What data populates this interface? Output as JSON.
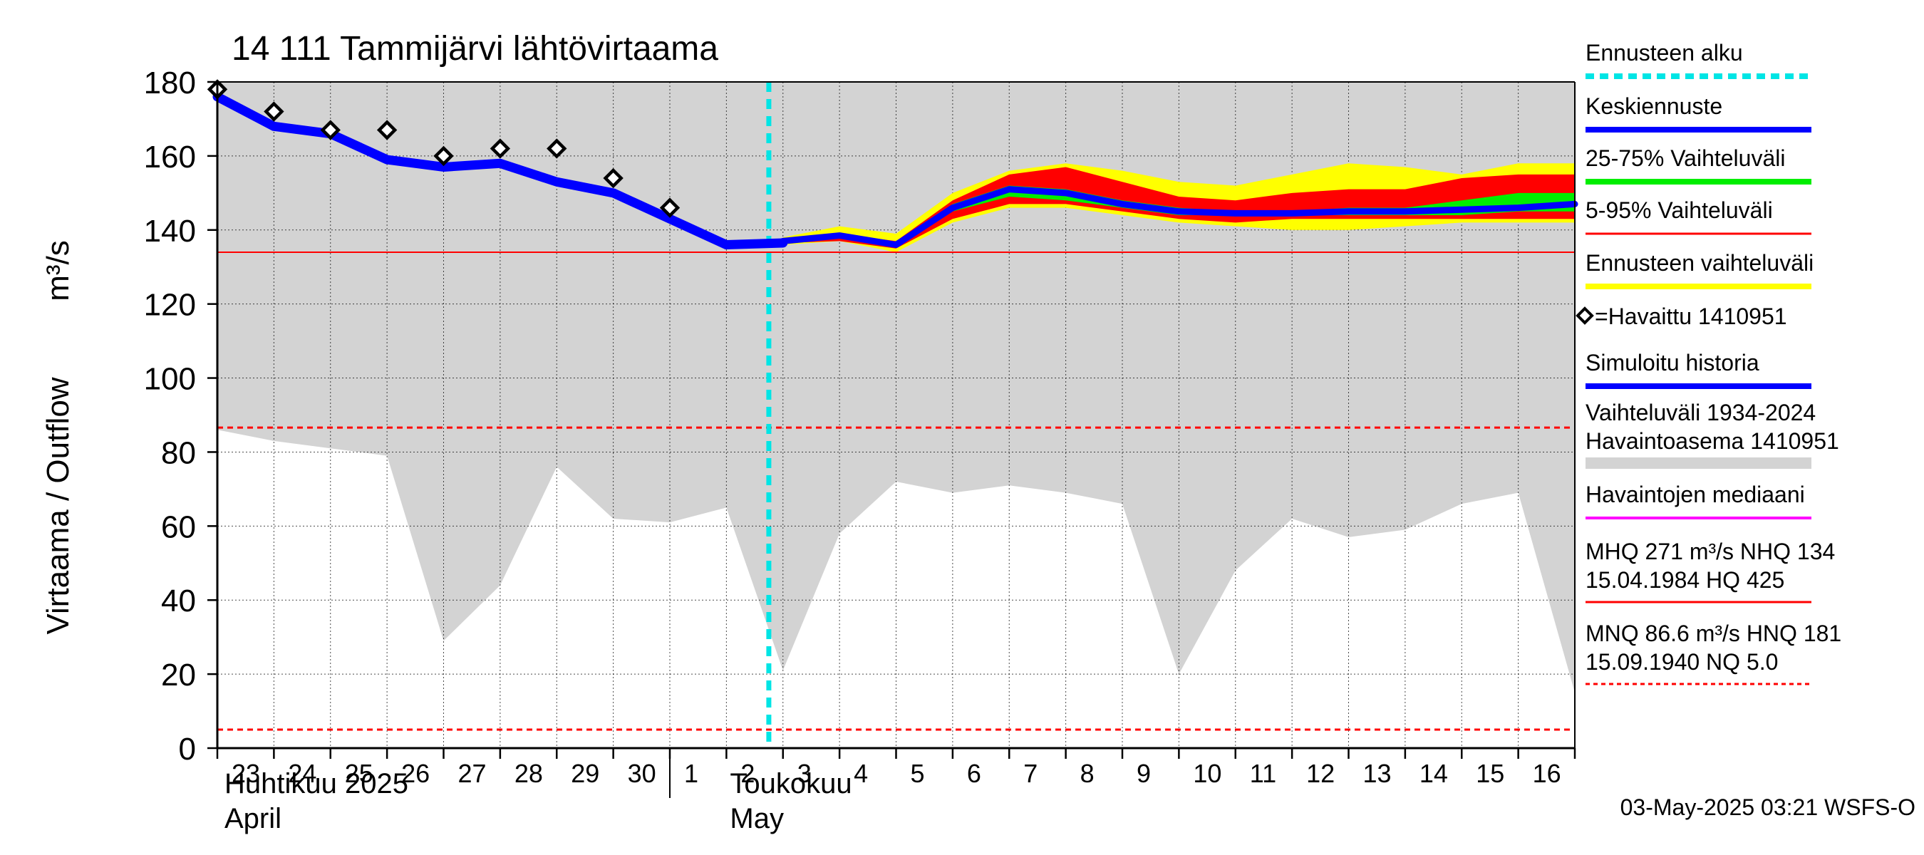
{
  "chart_data": {
    "type": "line",
    "title": "14 111 Tammijärvi lähtövirtaama",
    "ylabel": "Virtaama / Outflow",
    "yunit": "m³/s",
    "ylim": [
      0,
      180
    ],
    "yticks": [
      0,
      20,
      40,
      60,
      80,
      100,
      120,
      140,
      160,
      180
    ],
    "xlim": [
      "2025-04-23",
      "2025-05-17"
    ],
    "x_tick_labels": [
      "23",
      "24",
      "25",
      "26",
      "27",
      "28",
      "29",
      "30",
      "1",
      "2",
      "3",
      "4",
      "5",
      "6",
      "7",
      "8",
      "9",
      "10",
      "11",
      "12",
      "13",
      "14",
      "15",
      "16"
    ],
    "month_labels": [
      {
        "fi": "Huhtikuu  2025",
        "en": "April"
      },
      {
        "fi": "Toukokuu",
        "en": "May"
      }
    ],
    "grid": true,
    "forecast_start": "2025-05-03",
    "colors": {
      "history_range": "#d3d3d3",
      "forecast_range": "#ffff00",
      "p5_95": "#ff0000",
      "p25_75": "#00ee00",
      "mean": "#0000ff",
      "forecast_start": "#00e5e5",
      "reference_line": "#ff0000"
    },
    "reference_lines": {
      "NHQ": 134,
      "MNQ": 86.6,
      "NQ": 5.0
    },
    "history_range": {
      "upper": 180,
      "lower": [
        {
          "x": "2025-04-23",
          "y": 86
        },
        {
          "x": "2025-04-24",
          "y": 83
        },
        {
          "x": "2025-04-25",
          "y": 81
        },
        {
          "x": "2025-04-26",
          "y": 79
        },
        {
          "x": "2025-04-27",
          "y": 29
        },
        {
          "x": "2025-04-28",
          "y": 44
        },
        {
          "x": "2025-04-29",
          "y": 76
        },
        {
          "x": "2025-04-30",
          "y": 62
        },
        {
          "x": "2025-05-01",
          "y": 61
        },
        {
          "x": "2025-05-02",
          "y": 65
        },
        {
          "x": "2025-05-03",
          "y": 21
        },
        {
          "x": "2025-05-04",
          "y": 58
        },
        {
          "x": "2025-05-05",
          "y": 72
        },
        {
          "x": "2025-05-06",
          "y": 69
        },
        {
          "x": "2025-05-07",
          "y": 71
        },
        {
          "x": "2025-05-08",
          "y": 69
        },
        {
          "x": "2025-05-09",
          "y": 66
        },
        {
          "x": "2025-05-10",
          "y": 20
        },
        {
          "x": "2025-05-11",
          "y": 48
        },
        {
          "x": "2025-05-12",
          "y": 62
        },
        {
          "x": "2025-05-13",
          "y": 57
        },
        {
          "x": "2025-05-14",
          "y": 59
        },
        {
          "x": "2025-05-15",
          "y": 66
        },
        {
          "x": "2025-05-16",
          "y": 69
        },
        {
          "x": "2025-05-17",
          "y": 15
        }
      ]
    },
    "forecast_range": [
      {
        "x": "2025-05-03",
        "low": 136,
        "high": 138
      },
      {
        "x": "2025-05-04",
        "low": 137,
        "high": 141
      },
      {
        "x": "2025-05-05",
        "low": 134,
        "high": 139
      },
      {
        "x": "2025-05-06",
        "low": 142,
        "high": 150
      },
      {
        "x": "2025-05-07",
        "low": 146,
        "high": 156
      },
      {
        "x": "2025-05-08",
        "low": 146,
        "high": 158
      },
      {
        "x": "2025-05-09",
        "low": 144,
        "high": 156
      },
      {
        "x": "2025-05-10",
        "low": 142,
        "high": 153
      },
      {
        "x": "2025-05-11",
        "low": 141,
        "high": 152
      },
      {
        "x": "2025-05-12",
        "low": 140,
        "high": 155
      },
      {
        "x": "2025-05-13",
        "low": 140,
        "high": 158
      },
      {
        "x": "2025-05-14",
        "low": 141,
        "high": 157
      },
      {
        "x": "2025-05-15",
        "low": 142,
        "high": 155
      },
      {
        "x": "2025-05-16",
        "low": 142,
        "high": 158
      },
      {
        "x": "2025-05-17",
        "low": 142,
        "high": 158
      }
    ],
    "p5_95": [
      {
        "x": "2025-05-03",
        "low": 136.5,
        "high": 137.5
      },
      {
        "x": "2025-05-04",
        "low": 137,
        "high": 139
      },
      {
        "x": "2025-05-05",
        "low": 135,
        "high": 137
      },
      {
        "x": "2025-05-06",
        "low": 143,
        "high": 148
      },
      {
        "x": "2025-05-07",
        "low": 147,
        "high": 155
      },
      {
        "x": "2025-05-08",
        "low": 147,
        "high": 157
      },
      {
        "x": "2025-05-09",
        "low": 145,
        "high": 153
      },
      {
        "x": "2025-05-10",
        "low": 143,
        "high": 149
      },
      {
        "x": "2025-05-11",
        "low": 142,
        "high": 148
      },
      {
        "x": "2025-05-12",
        "low": 143,
        "high": 150
      },
      {
        "x": "2025-05-13",
        "low": 143,
        "high": 151
      },
      {
        "x": "2025-05-14",
        "low": 143,
        "high": 151
      },
      {
        "x": "2025-05-15",
        "low": 143,
        "high": 154
      },
      {
        "x": "2025-05-16",
        "low": 143,
        "high": 155
      },
      {
        "x": "2025-05-17",
        "low": 143,
        "high": 155
      }
    ],
    "p25_75": [
      {
        "x": "2025-05-03",
        "low": 136.8,
        "high": 137.2
      },
      {
        "x": "2025-05-04",
        "low": 138,
        "high": 138.6
      },
      {
        "x": "2025-05-05",
        "low": 135.6,
        "high": 136.4
      },
      {
        "x": "2025-05-06",
        "low": 145,
        "high": 147
      },
      {
        "x": "2025-05-07",
        "low": 149,
        "high": 152
      },
      {
        "x": "2025-05-08",
        "low": 148,
        "high": 151
      },
      {
        "x": "2025-05-09",
        "low": 146,
        "high": 148
      },
      {
        "x": "2025-05-10",
        "low": 144,
        "high": 146
      },
      {
        "x": "2025-05-11",
        "low": 144,
        "high": 145
      },
      {
        "x": "2025-05-12",
        "low": 144,
        "high": 145
      },
      {
        "x": "2025-05-13",
        "low": 144,
        "high": 146
      },
      {
        "x": "2025-05-14",
        "low": 144,
        "high": 146
      },
      {
        "x": "2025-05-15",
        "low": 144,
        "high": 148
      },
      {
        "x": "2025-05-16",
        "low": 145,
        "high": 150
      },
      {
        "x": "2025-05-17",
        "low": 145,
        "high": 150
      }
    ],
    "series": [
      {
        "name": "Simuloitu historia",
        "values": [
          {
            "x": "2025-04-23",
            "y": 176
          },
          {
            "x": "2025-04-24",
            "y": 168
          },
          {
            "x": "2025-04-25",
            "y": 166
          },
          {
            "x": "2025-04-26",
            "y": 159
          },
          {
            "x": "2025-04-27",
            "y": 157
          },
          {
            "x": "2025-04-28",
            "y": 158
          },
          {
            "x": "2025-04-29",
            "y": 153
          },
          {
            "x": "2025-04-30",
            "y": 150
          },
          {
            "x": "2025-05-01",
            "y": 143
          },
          {
            "x": "2025-05-02",
            "y": 136
          },
          {
            "x": "2025-05-03",
            "y": 136.5
          }
        ]
      },
      {
        "name": "Keskiennuste",
        "values": [
          {
            "x": "2025-05-03",
            "y": 137
          },
          {
            "x": "2025-05-04",
            "y": 138.5
          },
          {
            "x": "2025-05-05",
            "y": 136
          },
          {
            "x": "2025-05-06",
            "y": 146
          },
          {
            "x": "2025-05-07",
            "y": 151
          },
          {
            "x": "2025-05-08",
            "y": 150
          },
          {
            "x": "2025-05-09",
            "y": 147
          },
          {
            "x": "2025-05-10",
            "y": 145
          },
          {
            "x": "2025-05-11",
            "y": 144.5
          },
          {
            "x": "2025-05-12",
            "y": 144.5
          },
          {
            "x": "2025-05-13",
            "y": 145
          },
          {
            "x": "2025-05-14",
            "y": 145
          },
          {
            "x": "2025-05-15",
            "y": 145.5
          },
          {
            "x": "2025-05-16",
            "y": 146
          },
          {
            "x": "2025-05-17",
            "y": 147
          }
        ]
      }
    ],
    "observed": [
      {
        "x": "2025-04-23",
        "y": 178
      },
      {
        "x": "2025-04-24",
        "y": 172
      },
      {
        "x": "2025-04-25",
        "y": 167
      },
      {
        "x": "2025-04-26",
        "y": 167
      },
      {
        "x": "2025-04-27",
        "y": 160
      },
      {
        "x": "2025-04-28",
        "y": 162
      },
      {
        "x": "2025-04-29",
        "y": 162
      },
      {
        "x": "2025-04-30",
        "y": 154
      },
      {
        "x": "2025-05-01",
        "y": 146
      }
    ],
    "legend": {
      "placement": "right",
      "items": [
        {
          "label": "Ennusteen alku",
          "style": "dashed",
          "color": "#00e5e5"
        },
        {
          "label": "Keskiennuste",
          "style": "line",
          "color": "#0000ff"
        },
        {
          "label": "25-75% Vaihteluväli",
          "style": "line",
          "color": "#00ee00"
        },
        {
          "label": "5-95% Vaihteluväli",
          "style": "line",
          "color": "#ff0000"
        },
        {
          "label": "Ennusteen vaihteluväli",
          "style": "line",
          "color": "#ffff00"
        },
        {
          "label": "=Havaittu 1410951",
          "style": "marker",
          "color": "#000000"
        },
        {
          "label": "Simuloitu historia",
          "style": "line",
          "color": "#0000ff"
        },
        {
          "label": "Vaihteluväli 1934-2024",
          "label2": " Havaintoasema 1410951",
          "style": "line",
          "color": "#d3d3d3"
        },
        {
          "label": "Havaintojen mediaani",
          "style": "line",
          "color": "#ff00ff"
        },
        {
          "label": "MHQ  271 m³/s NHQ  134",
          "label2": "15.04.1984 HQ  425",
          "style": "line",
          "color": "#ff0000"
        },
        {
          "label": "MNQ 86.6 m³/s HNQ  181",
          "label2": "15.09.1940 NQ  5.0",
          "style": "dashed",
          "color": "#ff0000"
        }
      ]
    },
    "footer": "03-May-2025 03:21 WSFS-O"
  }
}
